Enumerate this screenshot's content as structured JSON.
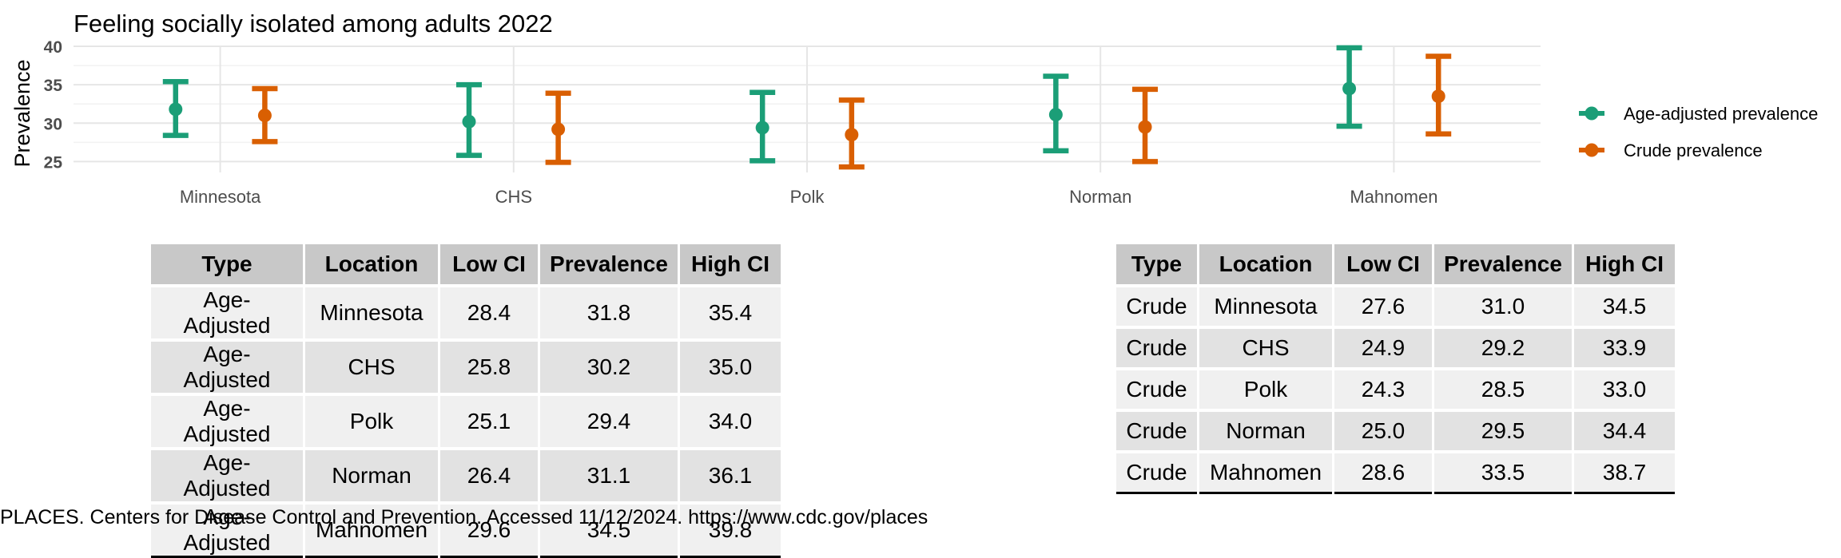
{
  "chart_data": {
    "type": "errorbar",
    "title": "Feeling socially isolated among adults 2022",
    "xlabel": "",
    "ylabel": "Prevalence",
    "ylim": [
      24,
      40
    ],
    "yticks": [
      25,
      30,
      35,
      40
    ],
    "grid": true,
    "legend_position": "right",
    "categories": [
      "Minnesota",
      "CHS",
      "Polk",
      "Norman",
      "Mahnomen"
    ],
    "series": [
      {
        "name": "Age-adjusted prevalence",
        "color": "#1b9e77",
        "values": [
          31.8,
          30.2,
          29.4,
          31.1,
          34.5
        ],
        "low": [
          28.4,
          25.8,
          25.1,
          26.4,
          29.6
        ],
        "high": [
          35.4,
          35.0,
          34.0,
          36.1,
          39.8
        ]
      },
      {
        "name": "Crude prevalence",
        "color": "#d95f02",
        "values": [
          31.0,
          29.2,
          28.5,
          29.5,
          33.5
        ],
        "low": [
          27.6,
          24.9,
          24.3,
          25.0,
          28.6
        ],
        "high": [
          34.5,
          33.9,
          33.0,
          34.4,
          38.7
        ]
      }
    ]
  },
  "tables": {
    "age_adjusted": {
      "headers": [
        "Type",
        "Location",
        "Low CI",
        "Prevalence",
        "High CI"
      ],
      "rows": [
        [
          "Age-Adjusted",
          "Minnesota",
          "28.4",
          "31.8",
          "35.4"
        ],
        [
          "Age-Adjusted",
          "CHS",
          "25.8",
          "30.2",
          "35.0"
        ],
        [
          "Age-Adjusted",
          "Polk",
          "25.1",
          "29.4",
          "34.0"
        ],
        [
          "Age-Adjusted",
          "Norman",
          "26.4",
          "31.1",
          "36.1"
        ],
        [
          "Age-Adjusted",
          "Mahnomen",
          "29.6",
          "34.5",
          "39.8"
        ]
      ]
    },
    "crude": {
      "headers": [
        "Type",
        "Location",
        "Low CI",
        "Prevalence",
        "High CI"
      ],
      "rows": [
        [
          "Crude",
          "Minnesota",
          "27.6",
          "31.0",
          "34.5"
        ],
        [
          "Crude",
          "CHS",
          "24.9",
          "29.2",
          "33.9"
        ],
        [
          "Crude",
          "Polk",
          "24.3",
          "28.5",
          "33.0"
        ],
        [
          "Crude",
          "Norman",
          "25.0",
          "29.5",
          "34.4"
        ],
        [
          "Crude",
          "Mahnomen",
          "28.6",
          "33.5",
          "38.7"
        ]
      ]
    }
  },
  "caption": "PLACES. Centers for Disease Control and Prevention. Accessed 11/12/2024. https://www.cdc.gov/places"
}
